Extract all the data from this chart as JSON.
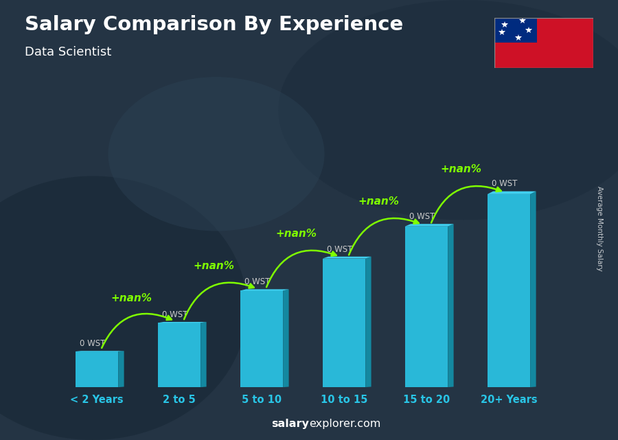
{
  "title": "Salary Comparison By Experience",
  "subtitle": "Data Scientist",
  "categories": [
    "< 2 Years",
    "2 to 5",
    "5 to 10",
    "10 to 15",
    "15 to 20",
    "20+ Years"
  ],
  "bar_heights": [
    1.0,
    1.8,
    2.7,
    3.6,
    4.5,
    5.4
  ],
  "bar_color_face": "#29b8d8",
  "bar_color_side": "#1488a0",
  "bar_color_top": "#40d0f0",
  "salary_labels": [
    "0 WST",
    "0 WST",
    "0 WST",
    "0 WST",
    "0 WST",
    "0 WST"
  ],
  "nan_labels": [
    "+nan%",
    "+nan%",
    "+nan%",
    "+nan%",
    "+nan%"
  ],
  "ylabel": "Average Monthly Salary",
  "footer_normal": "explorer.com",
  "footer_bold": "salary",
  "background_color": "#1e3040",
  "title_color": "#ffffff",
  "subtitle_color": "#ffffff",
  "bar_label_color": "#ffffff",
  "nan_color": "#7fff00",
  "xlabel_color": "#29c5e6",
  "flag_red": "#ce1126",
  "flag_blue": "#002b7f",
  "arc_color": "#7fff00",
  "wst_label_color": "#cccccc"
}
